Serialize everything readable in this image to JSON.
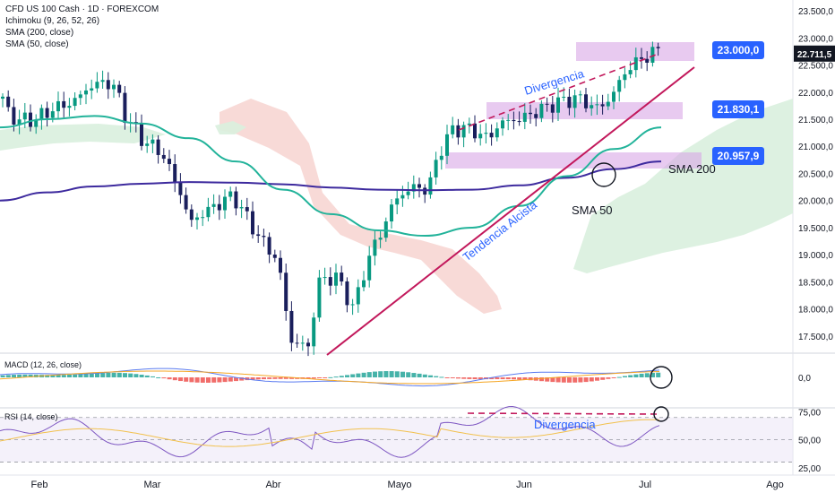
{
  "header": {
    "title": "CFD US 100 Cash · 1D · FOREXCOM",
    "indicators": [
      "Ichimoku (9, 26, 52, 26)",
      "SMA (200, close)",
      "SMA (50, close)"
    ]
  },
  "colors": {
    "up": "#089981",
    "down": "#1a1f5c",
    "sma200": "#3d2a9e",
    "sma50": "#22b39a",
    "trend": "#c2185b",
    "zone": "#d8a6e6",
    "cloud_red": "#f7d4d0",
    "cloud_green": "#d9f0de",
    "tag": "#2962ff",
    "price_tag": "#131722",
    "macd_line": "#5b7cf0",
    "signal_line": "#f5a623",
    "rsi_line": "#7e57c2",
    "rsi_ma": "#f2c14e"
  },
  "chart_data": [
    {
      "type": "candlestick",
      "title": "CFD US 100 Cash · 1D · FOREXCOM",
      "ylim": [
        17200,
        23700
      ],
      "y_ticks": [
        "23.500,0",
        "23.000,0",
        "22.500,0",
        "22.000,0",
        "21.500,0",
        "21.000,0",
        "20.500,0",
        "20.000,0",
        "19.500,0",
        "19.000,0",
        "18.500,0",
        "18.000,0",
        "17.500,0"
      ],
      "x_ticks": [
        "Feb",
        "Mar",
        "Abr",
        "Mayo",
        "Jun",
        "Jul",
        "Ago"
      ],
      "last_price": "22.711,5",
      "levels": [
        {
          "label": "23.000,0",
          "value": 23000
        },
        {
          "label": "21.830,1",
          "value": 21830
        },
        {
          "label": "20.957,9",
          "value": 20958
        }
      ],
      "annotations": [
        "Divergencia",
        "Tendencia Alcista",
        "SMA 200",
        "SMA 50"
      ],
      "series": [
        {
          "name": "SMA (200, close)",
          "values": [
            20000,
            20150,
            20260,
            20310,
            20340,
            20330,
            20300,
            20240,
            20200,
            20190,
            20200,
            20280,
            20420,
            20580,
            20720
          ]
        },
        {
          "name": "SMA (50, close)",
          "values": [
            21350,
            21500,
            21560,
            21420,
            21150,
            20720,
            20200,
            19750,
            19450,
            19350,
            19500,
            19900,
            20450,
            20950,
            21350
          ]
        }
      ]
    },
    {
      "type": "bar",
      "title": "MACD (12, 26, close)",
      "y_ticks": [
        "0,0"
      ]
    },
    {
      "type": "line",
      "title": "RSI (14, close)",
      "ylim": [
        20,
        77
      ],
      "y_ticks": [
        "75,00",
        "50,00",
        "25,00"
      ],
      "annotations": [
        "Divergencia"
      ]
    }
  ]
}
